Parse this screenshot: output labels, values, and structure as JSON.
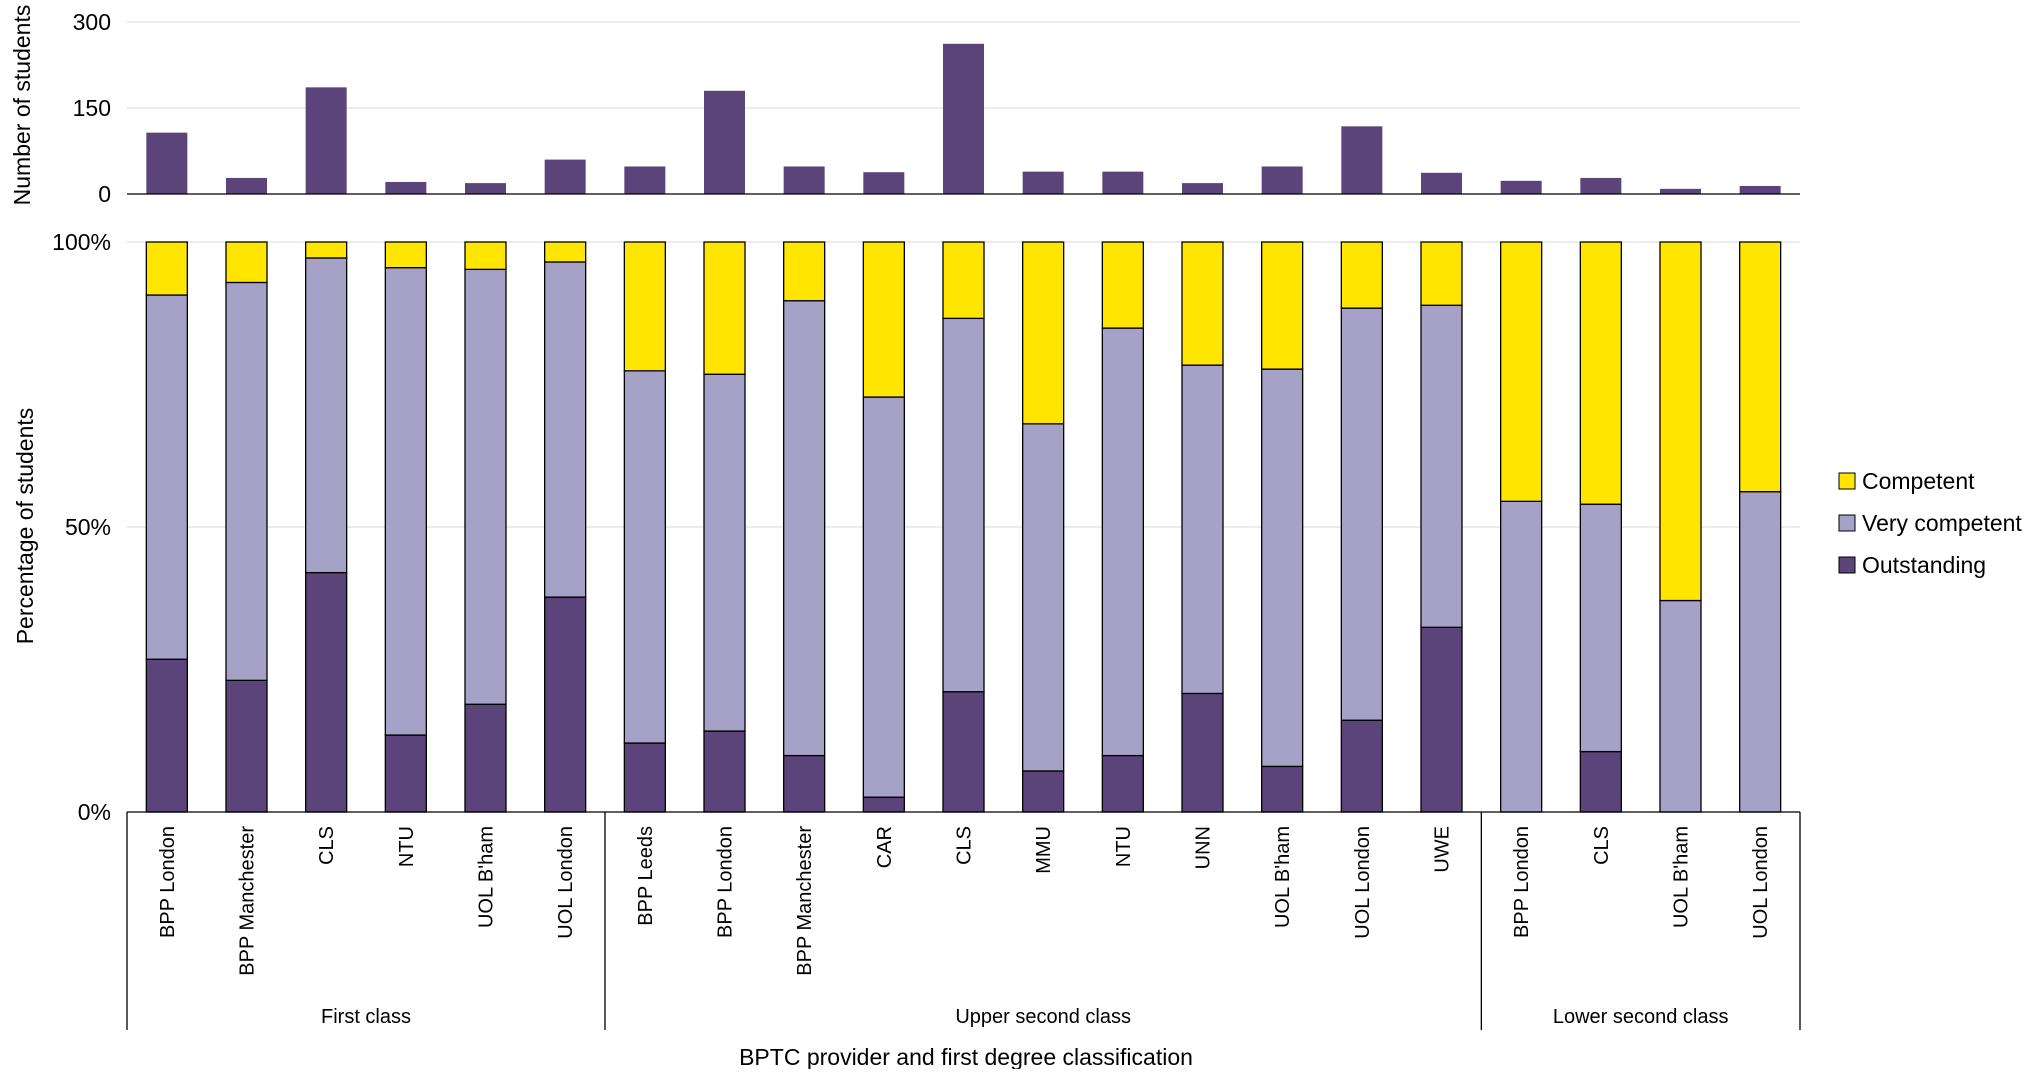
{
  "chart_data": {
    "type": "bar",
    "xlabel": "BPTC provider and first degree classification",
    "groups": [
      {
        "name": "First class",
        "categories": [
          "BPP London",
          "BPP Manchester",
          "CLS",
          "NTU",
          "UOL B'ham",
          "UOL London"
        ]
      },
      {
        "name": "Upper second class",
        "categories": [
          "BPP Leeds",
          "BPP London",
          "BPP Manchester",
          "CAR",
          "CLS",
          "MMU",
          "NTU",
          "UNN",
          "UOL B'ham",
          "UOL London",
          "UWE"
        ]
      },
      {
        "name": "Lower second class",
        "categories": [
          "BPP London",
          "CLS",
          "UOL B'ham",
          "UOL London"
        ]
      }
    ],
    "charts": [
      {
        "panel": "top",
        "type": "bar",
        "ylabel": "Number of students",
        "ylim": [
          0,
          300
        ],
        "yticks": [
          "0",
          "150",
          "300"
        ],
        "series": [
          {
            "name": "Number of students",
            "values": [
              107,
              28,
              186,
              21,
              19,
              60,
              48,
              180,
              48,
              38,
              262,
              39,
              39,
              19,
              48,
              118,
              37,
              23,
              28,
              9,
              14
            ]
          }
        ],
        "color": "#5a4479",
        "grid": true
      },
      {
        "panel": "bottom",
        "type": "stacked_bar",
        "ylabel": "Percentage of students",
        "ylim": [
          0,
          100
        ],
        "yticks": [
          "0%",
          "50%",
          "100%"
        ],
        "series": [
          {
            "name": "Outstanding",
            "color": "#5a4479",
            "values": [
              26.8,
              23.1,
              42.0,
              13.5,
              18.9,
              37.7,
              12.1,
              14.2,
              9.9,
              2.6,
              21.1,
              7.2,
              9.9,
              20.8,
              8.0,
              16.1,
              32.4,
              0,
              10.6,
              0,
              0
            ]
          },
          {
            "name": "Very competent",
            "color": "#a6a1c6",
            "values": [
              63.9,
              69.8,
              55.2,
              82.0,
              76.3,
              58.8,
              65.3,
              62.6,
              79.8,
              70.2,
              65.5,
              60.9,
              75.0,
              57.6,
              69.7,
              72.3,
              56.5,
              54.5,
              43.4,
              37.1,
              56.2
            ]
          },
          {
            "name": "Competent",
            "color": "#ffe500",
            "values": [
              9.3,
              7.1,
              2.8,
              4.5,
              4.8,
              3.5,
              22.6,
              23.2,
              10.3,
              27.2,
              13.4,
              31.9,
              15.1,
              21.6,
              22.3,
              11.6,
              11.1,
              45.5,
              46.0,
              62.9,
              43.8
            ]
          }
        ],
        "legend_position": "right",
        "grid": true
      }
    ]
  }
}
